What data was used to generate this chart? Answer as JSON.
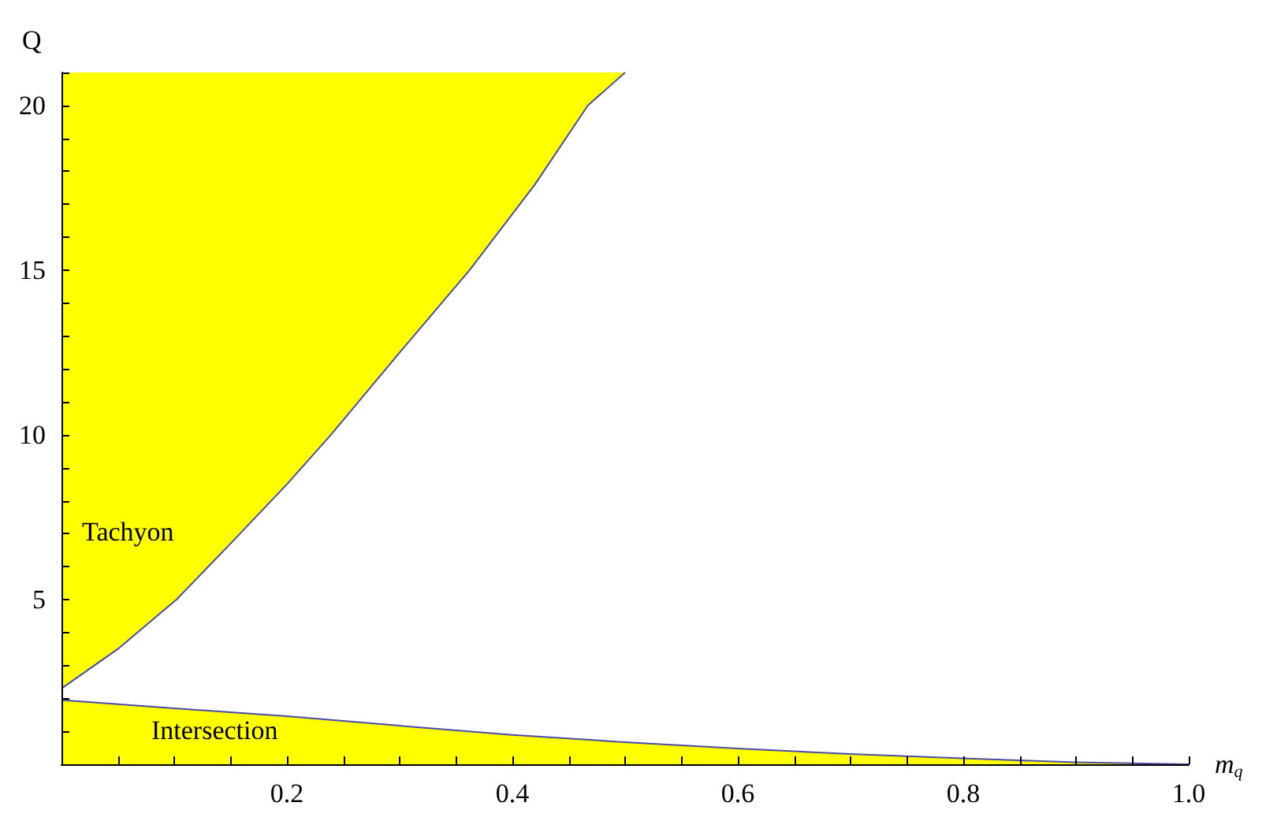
{
  "chart_data": {
    "type": "area",
    "xlabel": "m$_{q}$",
    "ylabel": "Q",
    "series": [
      {
        "type": "line",
        "color": "#4b4ba8",
        "x": [
          0,
          0.05,
          0.102,
          0.15,
          0.2,
          0.239,
          0.3,
          0.362,
          0.42,
          0.467,
          0.5
        ],
        "values": [
          2.3,
          3.5,
          5,
          6.7,
          8.5,
          10,
          12.5,
          15,
          17.6,
          20,
          21
        ],
        "lower": [
          2.3,
          3.5,
          5,
          6.7,
          8.5,
          10,
          12.5,
          15,
          17.6,
          20,
          21
        ],
        "upper": [
          21,
          21,
          21,
          21,
          21,
          21,
          21,
          21,
          21,
          21,
          21
        ]
      },
      {
        "color": "#ffff00",
        "x": [
          0,
          0.1,
          0.2,
          0.3,
          0.4,
          0.5,
          0.6,
          0.7,
          0.8,
          0.9,
          1
        ],
        "values": [
          1.95,
          1.7,
          1.46,
          1.17,
          0.89,
          0.67,
          0.48,
          0.31,
          0.18,
          0.06,
          0
        ]
      }
    ],
    "annotations": [
      "Tachyon",
      "Intersection"
    ],
    "xlim": [
      0,
      1
    ],
    "ylim": [
      0,
      21
    ],
    "xticks": [
      {
        "value": 0,
        "label": null
      },
      {
        "value": 0.05,
        "label": null
      },
      {
        "value": 0.1,
        "label": null
      },
      {
        "value": 0.15,
        "label": null
      },
      0.2,
      {
        "value": 0.25,
        "label": null
      },
      {
        "value": 0.3,
        "label": null
      },
      {
        "value": 0.35,
        "label": null
      },
      0.4,
      {
        "value": 0.45,
        "label": null
      },
      {
        "value": 0.5,
        "label": null
      },
      {
        "value": 0.55,
        "label": null
      },
      0.6,
      {
        "value": 0.65,
        "label": null
      },
      {
        "value": 0.7,
        "label": null
      },
      {
        "value": 0.75,
        "label": null
      },
      0.8,
      {
        "value": 0.85,
        "label": null
      },
      {
        "value": 0.9,
        "label": null
      },
      {
        "value": 0.95,
        "label": null
      },
      {
        "value": 1,
        "label": "1.0"
      }
    ],
    "yticks": [
      {
        "value": 0,
        "label": null
      },
      {
        "value": 1,
        "label": null
      },
      {
        "value": 2,
        "label": null
      },
      {
        "value": 3,
        "label": null
      },
      {
        "value": 4,
        "label": null
      },
      5,
      {
        "value": 6,
        "label": null
      },
      {
        "value": 7,
        "label": null
      },
      {
        "value": 8,
        "label": null
      },
      {
        "value": 9,
        "label": null
      },
      10,
      {
        "value": 11,
        "label": null
      },
      {
        "value": 12,
        "label": null
      },
      {
        "value": 13,
        "label": null
      },
      {
        "value": 14,
        "label": null
      },
      15,
      {
        "value": 16,
        "label": null
      },
      {
        "value": 17,
        "label": null
      },
      {
        "value": 18,
        "label": null
      },
      {
        "value": 19,
        "label": null
      },
      20,
      {
        "value": 21,
        "label": null
      }
    ],
    "grid": false
  }
}
